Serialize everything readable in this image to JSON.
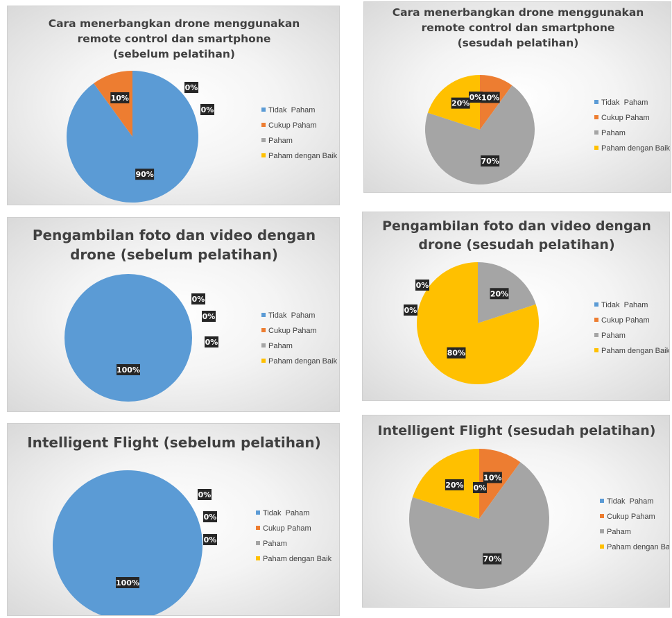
{
  "palette": {
    "Tidak  Paham": "#5B9BD5",
    "Cukup Paham": "#ED7D31",
    "Paham": "#A5A5A5",
    "Paham dengan Baik": "#FFC000"
  },
  "chart_data": [
    {
      "type": "pie",
      "title": [
        "Cara menerbangkan drone menggunakan",
        "remote control dan smartphone",
        "(sebelum pelatihan)"
      ],
      "categories": [
        "Tidak  Paham",
        "Cukup Paham",
        "Paham",
        "Paham dengan Baik"
      ],
      "values": [
        90,
        10,
        0,
        0
      ],
      "labels": [
        "90%",
        "10%",
        "0%",
        "0%"
      ],
      "legend_position": "right"
    },
    {
      "type": "pie",
      "title": [
        "Cara menerbangkan drone menggunakan",
        "remote control dan smartphone",
        "(sesudah pelatihan)"
      ],
      "categories": [
        "Tidak  Paham",
        "Cukup Paham",
        "Paham",
        "Paham dengan Baik"
      ],
      "values": [
        0,
        10,
        70,
        20
      ],
      "labels": [
        "0%",
        "10%",
        "70%",
        "20%"
      ],
      "legend_position": "right"
    },
    {
      "type": "pie",
      "title": [
        "Pengambilan foto dan video dengan",
        "drone (sebelum pelatihan)"
      ],
      "categories": [
        "Tidak  Paham",
        "Cukup Paham",
        "Paham",
        "Paham dengan Baik"
      ],
      "values": [
        100,
        0,
        0,
        0
      ],
      "labels": [
        "100%",
        "0%",
        "0%",
        "0%"
      ],
      "legend_position": "right"
    },
    {
      "type": "pie",
      "title": [
        "Pengambilan foto dan video dengan",
        "drone (sesudah pelatihan)"
      ],
      "categories": [
        "Tidak  Paham",
        "Cukup Paham",
        "Paham",
        "Paham dengan Baik"
      ],
      "values": [
        0,
        0,
        20,
        80
      ],
      "labels": [
        "0%",
        "0%",
        "20%",
        "80%"
      ],
      "legend_position": "right"
    },
    {
      "type": "pie",
      "title": [
        "Intelligent Flight (sebelum pelatihan)"
      ],
      "categories": [
        "Tidak  Paham",
        "Cukup Paham",
        "Paham",
        "Paham dengan Baik"
      ],
      "values": [
        100,
        0,
        0,
        0
      ],
      "labels": [
        "100%",
        "0%",
        "0%",
        "0%"
      ],
      "legend_position": "right"
    },
    {
      "type": "pie",
      "title": [
        "Intelligent Flight (sesudah pelatihan)"
      ],
      "categories": [
        "Tidak  Paham",
        "Cukup Paham",
        "Paham",
        "Paham dengan Baik"
      ],
      "values": [
        0,
        10,
        70,
        20
      ],
      "labels": [
        "0%",
        "10%",
        "70%",
        "20%"
      ],
      "legend_position": "right"
    }
  ]
}
